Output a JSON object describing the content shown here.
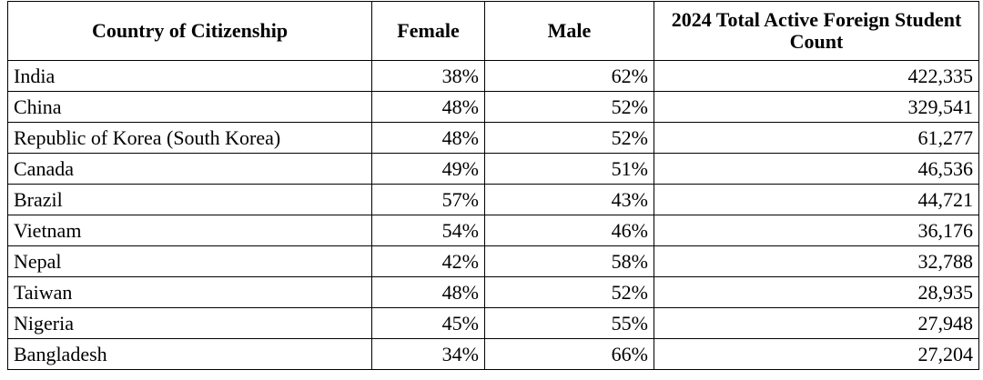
{
  "table": {
    "headers": [
      "Country of Citizenship",
      "Female",
      "Male",
      "2024 Total Active Foreign Student Count"
    ],
    "rows": [
      [
        "India",
        "38%",
        "62%",
        "422,335"
      ],
      [
        "China",
        "48%",
        "52%",
        "329,541"
      ],
      [
        "Republic of Korea (South Korea)",
        "48%",
        "52%",
        "61,277"
      ],
      [
        "Canada",
        "49%",
        "51%",
        "46,536"
      ],
      [
        "Brazil",
        "57%",
        "43%",
        "44,721"
      ],
      [
        "Vietnam",
        "54%",
        "46%",
        "36,176"
      ],
      [
        "Nepal",
        "42%",
        "58%",
        "32,788"
      ],
      [
        "Taiwan",
        "48%",
        "52%",
        "28,935"
      ],
      [
        "Nigeria",
        "45%",
        "55%",
        "27,948"
      ],
      [
        "Bangladesh",
        "34%",
        "66%",
        "27,204"
      ]
    ]
  }
}
